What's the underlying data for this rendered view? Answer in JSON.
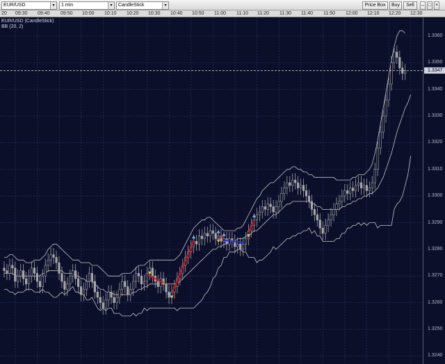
{
  "toolbar": {
    "symbol": "EUR/USD",
    "interval": "1 min",
    "chart_type": "CandleStick",
    "buttons": [
      "Price Box",
      "Buy",
      "Sell"
    ]
  },
  "time_axis": {
    "labels": [
      "20",
      "09:30",
      "09:40",
      "09:50",
      "10:00",
      "10:10",
      "10:20",
      "10:30",
      "10:40",
      "10:50",
      "11:00",
      "11:10",
      "11:20",
      "11:30",
      "11:40",
      "11:50",
      "12:00",
      "12:10",
      "12:20",
      "12:30"
    ]
  },
  "legend": {
    "series": "EUR/USD (CandleStick)",
    "indicator": "BB (20, 2)"
  },
  "price_axis": {
    "labels": [
      "1.3360",
      "1.3350",
      "1.3340",
      "1.3330",
      "1.3320",
      "1.3310",
      "1.3300",
      "1.3290",
      "1.3280",
      "1.3270",
      "1.3260",
      "1.3250",
      "1.3240"
    ],
    "current": "1.3347"
  },
  "colors": {
    "background": "#0b0f2a",
    "grid": "#2a3a6a",
    "candle": "#a8a8a8",
    "band": "#c8c8c8",
    "up_signal": "#e01010",
    "down_signal": "#2030e0",
    "buy_marker": "#7ab8f0",
    "sell_marker": "#e8c060"
  },
  "chart_data": {
    "type": "candlestick",
    "ylim": [
      1.3237,
      1.3367
    ],
    "x_start": "09:20",
    "interval_minutes": 1,
    "closes": [
      1.3272,
      1.3271,
      1.3274,
      1.3273,
      1.3268,
      1.327,
      1.3272,
      1.3269,
      1.3267,
      1.327,
      1.3273,
      1.3271,
      1.3268,
      1.3266,
      1.327,
      1.3274,
      1.3276,
      1.3278,
      1.3277,
      1.3275,
      1.3271,
      1.3268,
      1.3265,
      1.3267,
      1.327,
      1.3272,
      1.3269,
      1.3266,
      1.3263,
      1.3265,
      1.3268,
      1.3271,
      1.3268,
      1.3264,
      1.3262,
      1.326,
      1.3258,
      1.3261,
      1.3264,
      1.3262,
      1.326,
      1.3262,
      1.3265,
      1.3268,
      1.3266,
      1.3263,
      1.3265,
      1.3268,
      1.3271,
      1.327,
      1.3267,
      1.3268,
      1.3271,
      1.3273,
      1.327,
      1.3268,
      1.3266,
      1.3269,
      1.3267,
      1.3264,
      1.3262,
      1.3264,
      1.3266,
      1.3269,
      1.3271,
      1.3274,
      1.3277,
      1.3279,
      1.3281,
      1.3283,
      1.3282,
      1.3285,
      1.3284,
      1.3286,
      1.3285,
      1.3287,
      1.3286,
      1.3284,
      1.3285,
      1.3283,
      1.3284,
      1.3282,
      1.3284,
      1.3283,
      1.3281,
      1.3282,
      1.328,
      1.3282,
      1.3284,
      1.3287,
      1.3289,
      1.3291,
      1.3293,
      1.3294,
      1.3296,
      1.3295,
      1.3297,
      1.3296,
      1.3294,
      1.3296,
      1.3298,
      1.3301,
      1.3303,
      1.3305,
      1.3304,
      1.3306,
      1.3305,
      1.3303,
      1.3304,
      1.3302,
      1.33,
      1.3298,
      1.3295,
      1.3293,
      1.3291,
      1.3288,
      1.3286,
      1.3289,
      1.3291,
      1.3293,
      1.3295,
      1.3297,
      1.3298,
      1.33,
      1.3302,
      1.3301,
      1.3303,
      1.3302,
      1.3304,
      1.3305,
      1.3303,
      1.3304,
      1.3302,
      1.3303,
      1.3305,
      1.331,
      1.3318,
      1.3324,
      1.333,
      1.3336,
      1.3342,
      1.335,
      1.3354,
      1.3352,
      1.3348,
      1.3346,
      1.3347
    ],
    "upper_band": [
      1.3277,
      1.3277,
      1.3278,
      1.3278,
      1.3277,
      1.3276,
      1.3276,
      1.3276,
      1.3275,
      1.3275,
      1.3275,
      1.3276,
      1.3276,
      1.3276,
      1.3277,
      1.3278,
      1.328,
      1.3281,
      1.3282,
      1.3282,
      1.3281,
      1.328,
      1.3279,
      1.3278,
      1.3277,
      1.3276,
      1.3276,
      1.3276,
      1.3275,
      1.3275,
      1.3275,
      1.3275,
      1.3274,
      1.3274,
      1.3274,
      1.3273,
      1.3272,
      1.3271,
      1.327,
      1.327,
      1.327,
      1.327,
      1.327,
      1.3271,
      1.3271,
      1.3271,
      1.3271,
      1.3272,
      1.3273,
      1.3274,
      1.3274,
      1.3274,
      1.3275,
      1.3276,
      1.3276,
      1.3276,
      1.3276,
      1.3276,
      1.3276,
      1.3276,
      1.3276,
      1.3276,
      1.3276,
      1.3277,
      1.3278,
      1.328,
      1.3282,
      1.3284,
      1.3286,
      1.3288,
      1.3289,
      1.329,
      1.3291,
      1.3291,
      1.3292,
      1.3292,
      1.3291,
      1.329,
      1.3289,
      1.3288,
      1.3287,
      1.3287,
      1.3287,
      1.3287,
      1.3287,
      1.3288,
      1.3288,
      1.3289,
      1.3291,
      1.3293,
      1.3295,
      1.3297,
      1.3299,
      1.33,
      1.3302,
      1.3303,
      1.3304,
      1.3305,
      1.3305,
      1.3306,
      1.3307,
      1.3308,
      1.3309,
      1.331,
      1.331,
      1.3311,
      1.3311,
      1.331,
      1.331,
      1.3309,
      1.3309,
      1.3308,
      1.3308,
      1.3307,
      1.3307,
      1.3307,
      1.3307,
      1.3307,
      1.3307,
      1.3307,
      1.3307,
      1.3306,
      1.3306,
      1.3306,
      1.3306,
      1.3306,
      1.3306,
      1.3307,
      1.3307,
      1.3308,
      1.3308,
      1.3308,
      1.3309,
      1.331,
      1.3312,
      1.3316,
      1.3321,
      1.3327,
      1.3333,
      1.3339,
      1.3345,
      1.3351,
      1.3356,
      1.336,
      1.3362,
      1.3362,
      1.3361
    ],
    "middle_band": [
      1.3271,
      1.3271,
      1.3271,
      1.3271,
      1.327,
      1.327,
      1.327,
      1.327,
      1.327,
      1.327,
      1.327,
      1.327,
      1.327,
      1.327,
      1.3271,
      1.3271,
      1.3272,
      1.3272,
      1.3272,
      1.3272,
      1.3272,
      1.3272,
      1.3271,
      1.3271,
      1.3271,
      1.3271,
      1.327,
      1.327,
      1.3269,
      1.3269,
      1.3268,
      1.3268,
      1.3268,
      1.3267,
      1.3266,
      1.3265,
      1.3265,
      1.3264,
      1.3264,
      1.3264,
      1.3263,
      1.3263,
      1.3263,
      1.3263,
      1.3263,
      1.3263,
      1.3263,
      1.3264,
      1.3264,
      1.3265,
      1.3265,
      1.3266,
      1.3266,
      1.3267,
      1.3267,
      1.3267,
      1.3267,
      1.3267,
      1.3267,
      1.3267,
      1.3267,
      1.3267,
      1.3267,
      1.3267,
      1.3268,
      1.3269,
      1.327,
      1.3271,
      1.3272,
      1.3273,
      1.3274,
      1.3275,
      1.3276,
      1.3277,
      1.3278,
      1.3279,
      1.328,
      1.328,
      1.3281,
      1.3281,
      1.3282,
      1.3282,
      1.3283,
      1.3283,
      1.3283,
      1.3284,
      1.3284,
      1.3284,
      1.3285,
      1.3285,
      1.3286,
      1.3287,
      1.3287,
      1.3288,
      1.3289,
      1.329,
      1.3291,
      1.3292,
      1.3293,
      1.3293,
      1.3294,
      1.3295,
      1.3296,
      1.3297,
      1.3297,
      1.3298,
      1.3298,
      1.3298,
      1.3298,
      1.3298,
      1.3298,
      1.3298,
      1.3297,
      1.3297,
      1.3296,
      1.3296,
      1.3295,
      1.3295,
      1.3295,
      1.3295,
      1.3295,
      1.3295,
      1.3295,
      1.3296,
      1.3296,
      1.3297,
      1.3297,
      1.3298,
      1.3298,
      1.3299,
      1.3299,
      1.33,
      1.33,
      1.3301,
      1.3301,
      1.3302,
      1.3303,
      1.3305,
      1.3307,
      1.331,
      1.3313,
      1.3316,
      1.332,
      1.3324,
      1.3327,
      1.333,
      1.3333,
      1.3335,
      1.3338
    ],
    "lower_band": [
      1.3265,
      1.3265,
      1.3264,
      1.3264,
      1.3263,
      1.3264,
      1.3264,
      1.3264,
      1.3265,
      1.3265,
      1.3265,
      1.3264,
      1.3264,
      1.3264,
      1.3265,
      1.3264,
      1.3264,
      1.3263,
      1.3262,
      1.3262,
      1.3263,
      1.3264,
      1.3263,
      1.3264,
      1.3265,
      1.3266,
      1.3264,
      1.3264,
      1.3263,
      1.3263,
      1.3261,
      1.3261,
      1.3262,
      1.326,
      1.3258,
      1.3257,
      1.3258,
      1.3257,
      1.3258,
      1.3258,
      1.3256,
      1.3256,
      1.3256,
      1.3255,
      1.3255,
      1.3255,
      1.3255,
      1.3256,
      1.3255,
      1.3256,
      1.3256,
      1.3258,
      1.3257,
      1.3258,
      1.3258,
      1.3258,
      1.3258,
      1.3258,
      1.3258,
      1.3258,
      1.3258,
      1.3258,
      1.3258,
      1.3257,
      1.3258,
      1.3258,
      1.3258,
      1.3258,
      1.3258,
      1.3258,
      1.3259,
      1.326,
      1.3261,
      1.3263,
      1.3264,
      1.3266,
      1.3269,
      1.327,
      1.3273,
      1.3274,
      1.3277,
      1.3277,
      1.3279,
      1.3279,
      1.3279,
      1.328,
      1.328,
      1.3279,
      1.3279,
      1.3277,
      1.3277,
      1.3277,
      1.3275,
      1.3276,
      1.3276,
      1.3277,
      1.3278,
      1.3279,
      1.3281,
      1.328,
      1.3281,
      1.3282,
      1.3283,
      1.3284,
      1.3284,
      1.3285,
      1.3285,
      1.3286,
      1.3286,
      1.3287,
      1.3287,
      1.3288,
      1.3286,
      1.3287,
      1.3285,
      1.3285,
      1.3283,
      1.3283,
      1.3283,
      1.3283,
      1.3283,
      1.3284,
      1.3284,
      1.3286,
      1.3286,
      1.3288,
      1.3288,
      1.3289,
      1.3289,
      1.329,
      1.3289,
      1.329,
      1.3289,
      1.329,
      1.329,
      1.329,
      1.3288,
      1.3289,
      1.3289,
      1.3289,
      1.3289,
      1.3289,
      1.3295,
      1.3297,
      1.3298,
      1.33,
      1.3304,
      1.3308,
      1.3315
    ]
  }
}
